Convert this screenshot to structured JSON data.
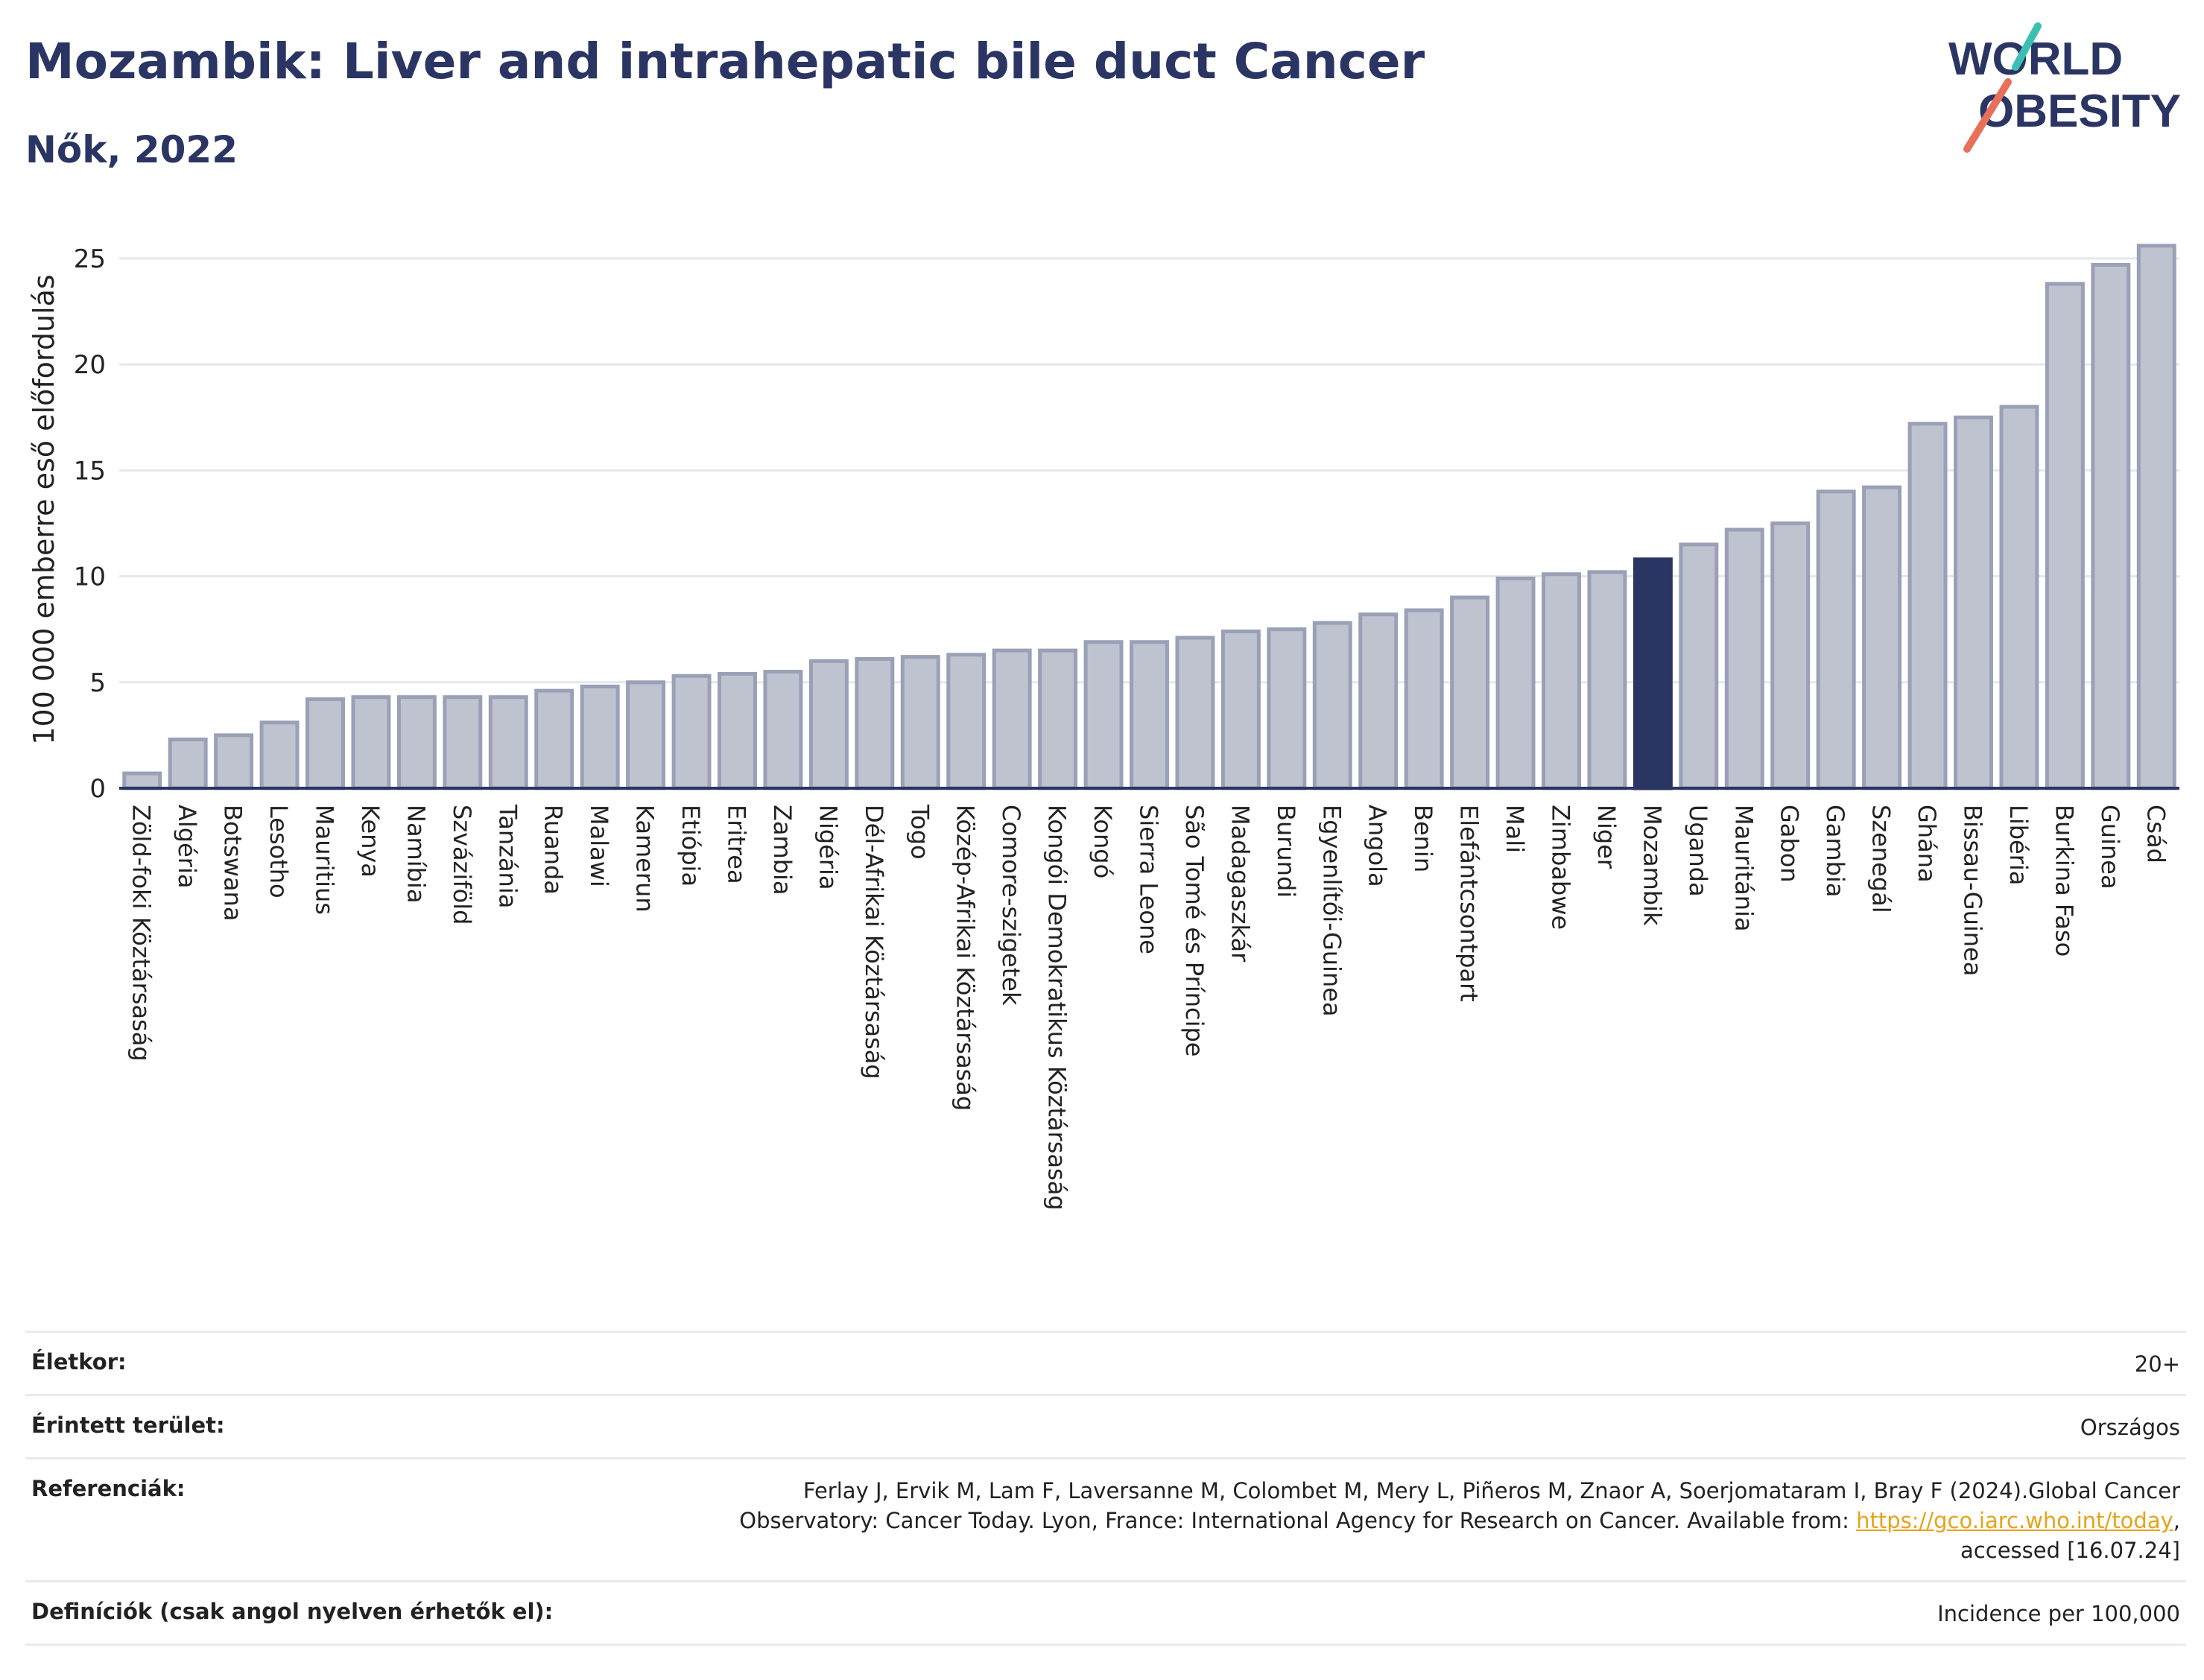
{
  "header": {
    "title": "Mozambik: Liver and intrahepatic bile duct Cancer",
    "subtitle": "Nők, 2022"
  },
  "logo": {
    "line1": "WORLD",
    "line2": "OBESITY"
  },
  "colors": {
    "bar": "#bfc3d0",
    "bar_stroke": "#9aa0b6",
    "highlight": "#2b3564",
    "title": "#2b3564",
    "link": "#e8a21a"
  },
  "chart_data": {
    "type": "bar",
    "ylabel": "100 000 emberre eső előfordulás",
    "ylim": [
      0,
      27
    ],
    "yticks": [
      0,
      5,
      10,
      15,
      20,
      25
    ],
    "grid": true,
    "highlight": "Mozambik",
    "categories": [
      "Zöld-foki Köztársaság",
      "Algéria",
      "Botswana",
      "Lesotho",
      "Mauritius",
      "Kenya",
      "Namíbia",
      "Szváziföld",
      "Tanzánia",
      "Ruanda",
      "Malawi",
      "Kamerun",
      "Etiópia",
      "Eritrea",
      "Zambia",
      "Nigéria",
      "Dél-Afrikai Köztársaság",
      "Togo",
      "Közép-Afrikai Köztársaság",
      "Comore-szigetek",
      "Kongói Demokratikus Köztársaság",
      "Kongó",
      "Sierra Leone",
      "São Tomé és Príncipe",
      "Madagaszkár",
      "Burundi",
      "Egyenlítői-Guinea",
      "Angola",
      "Benin",
      "Elefántcsontpart",
      "Mali",
      "Zimbabwe",
      "Niger",
      "Mozambik",
      "Uganda",
      "Mauritánia",
      "Gabon",
      "Gambia",
      "Szenegál",
      "Ghána",
      "Bissau-Guinea",
      "Libéria",
      "Burkina Faso",
      "Guinea",
      "Csád"
    ],
    "values": [
      0.7,
      2.3,
      2.5,
      3.1,
      4.2,
      4.3,
      4.3,
      4.3,
      4.3,
      4.6,
      4.8,
      5.0,
      5.3,
      5.4,
      5.5,
      6.0,
      6.1,
      6.2,
      6.3,
      6.5,
      6.5,
      6.9,
      6.9,
      7.1,
      7.4,
      7.5,
      7.8,
      8.2,
      8.4,
      9.0,
      9.9,
      10.1,
      10.2,
      10.8,
      11.5,
      12.2,
      12.5,
      14.0,
      14.2,
      17.2,
      17.5,
      18.0,
      23.8,
      24.7,
      25.6
    ]
  },
  "info": {
    "age_label": "Életkor:",
    "age_value": "20+",
    "area_label": "Érintett terület:",
    "area_value": "Országos",
    "ref_label": "Referenciák:",
    "ref_line1": "Ferlay J, Ervik M, Lam F, Laversanne M, Colombet M, Mery L, Piñeros M, Znaor A, Soerjomataram I, Bray F (2024).Global Cancer",
    "ref_line2": "Observatory: Cancer Today. Lyon, France: International Agency for Research on Cancer. Available from: ",
    "ref_link": "https://gco.iarc.who.int/today",
    "ref_line2_end": ",",
    "ref_line3": "accessed [16.07.24]",
    "def_label": "Definíciók (csak angol nyelven érhetők el):",
    "def_value": "Incidence per 100,000"
  }
}
